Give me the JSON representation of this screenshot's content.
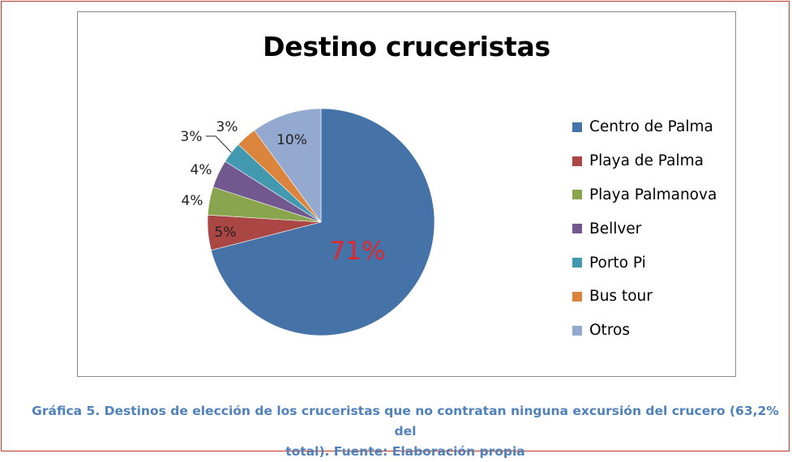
{
  "chart_data": {
    "type": "pie",
    "title": "Destino cruceristas",
    "categories": [
      "Centro de Palma",
      "Playa de Palma",
      "Playa Palmanova",
      "Bellver",
      "Porto Pi",
      "Bus tour",
      "Otros"
    ],
    "values": [
      71,
      5,
      4,
      4,
      3,
      3,
      10
    ],
    "data_labels": [
      "71%",
      "5%",
      "4%",
      "4%",
      "3%",
      "3%",
      "10%"
    ],
    "colors": [
      "#4572a7",
      "#aa4643",
      "#89a54e",
      "#71588f",
      "#4198af",
      "#db843d",
      "#93a9cf"
    ],
    "legend_position": "right"
  },
  "caption": {
    "line1": "Gráfica 5. Destinos de elección de los cruceristas que no contratan ninguna excursión del crucero (63,2% del",
    "line2": "total). Fuente: Elaboración propia"
  }
}
